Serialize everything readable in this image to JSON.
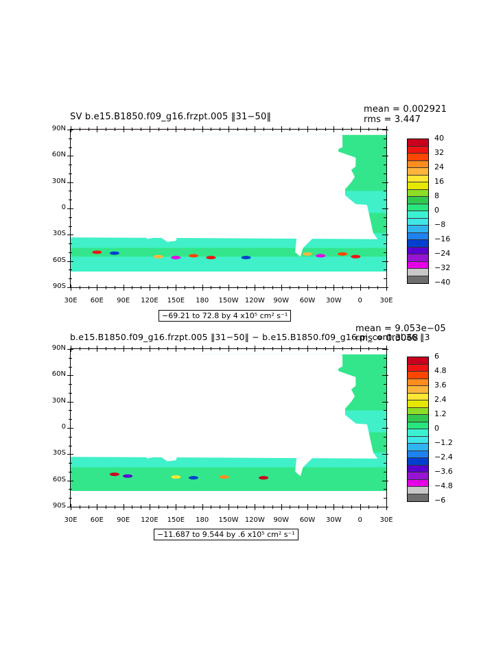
{
  "panels": [
    {
      "id": "top",
      "title": "SV b.e15.B1850.f09_g16.frzpt.005 ‖3 1−50‖",
      "title_plain": "SV b.e15.B1850.f09_g16.frzpt.005 [31-50]",
      "mean_label": "mean = 0.002921",
      "rms_label": "rms = 3.447",
      "range_text": "−69.21 to 72.8 by 4 x10⁵ cm² s⁻¹",
      "legend_labels": [
        "40",
        "32",
        "24",
        "16",
        "8",
        "0",
        "−8",
        "−16",
        "−24",
        "−32",
        "−40"
      ],
      "legend_colors": [
        "#c8001e",
        "#ee1414",
        "#ff4600",
        "#ff8c1e",
        "#ffb43c",
        "#ffe632",
        "#e6e600",
        "#8cdc28",
        "#32c850",
        "#28e67d",
        "#3cf0d2",
        "#40e6e6",
        "#30b4f0",
        "#1e82f0",
        "#0040d0",
        "#5a00d0",
        "#9614d2",
        "#e600e6",
        "#c8c8c8",
        "#6e6e6e"
      ],
      "field_palette": [
        "#33e68c",
        "#40f0c8",
        "#3ff2e0"
      ]
    },
    {
      "id": "bottom",
      "title": "b.e15.B1850.f09_g16.frzpt.005 ‖3 1−50‖ − b.e15.B1850.f09_g16.pi_control.36 ‖3",
      "mean_label": "mean = 9.053e−05",
      "rms_label": "rms = 0.3068",
      "range_text": "−11.687 to 9.544 by .6 x10⁵ cm² s⁻¹",
      "legend_labels": [
        "6",
        "4.8",
        "3.6",
        "2.4",
        "1.2",
        "0",
        "−1.2",
        "−2.4",
        "−3.6",
        "−4.8",
        "−6"
      ],
      "legend_colors": [
        "#c8001e",
        "#ee1414",
        "#ff4600",
        "#ff8c1e",
        "#ffb43c",
        "#ffe632",
        "#e6e600",
        "#8cdc28",
        "#32c850",
        "#28e67d",
        "#3cf0d2",
        "#40e6e6",
        "#30b4f0",
        "#1e82f0",
        "#0040d0",
        "#5a00d0",
        "#9614d2",
        "#e600e6",
        "#c8c8c8",
        "#6e6e6e"
      ],
      "field_palette": [
        "#33e68c",
        "#40f0c8",
        "#3ff2e0"
      ]
    }
  ],
  "axes": {
    "y_labels": [
      "90N",
      "60N",
      "30N",
      "0",
      "30S",
      "60S",
      "90S"
    ],
    "x_labels": [
      "30E",
      "60E",
      "90E",
      "120E",
      "150E",
      "180",
      "150W",
      "120W",
      "90W",
      "60W",
      "30W",
      "0",
      "30E"
    ]
  }
}
